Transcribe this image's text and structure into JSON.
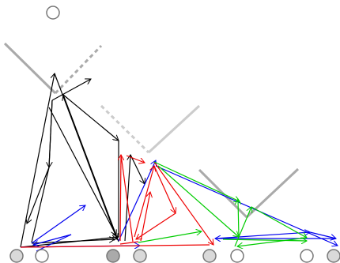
{
  "colors": {
    "background": "#ffffff",
    "node_stroke": "#777777",
    "node_fill_empty": "#ffffff",
    "node_fill_light": "#d9d9d9",
    "node_fill_dark": "#aaaaaa",
    "black": "#000000",
    "blue": "#0000ee",
    "red": "#ee0000",
    "green": "#00cc00"
  },
  "nodes": [
    {
      "id": "top",
      "fill": "empty"
    },
    {
      "id": "b1",
      "fill": "light"
    },
    {
      "id": "b2",
      "fill": "empty"
    },
    {
      "id": "b3",
      "fill": "dark"
    },
    {
      "id": "b4",
      "fill": "light"
    },
    {
      "id": "b5",
      "fill": "light"
    },
    {
      "id": "b6",
      "fill": "empty"
    },
    {
      "id": "b7",
      "fill": "empty"
    },
    {
      "id": "b8",
      "fill": "light"
    }
  ]
}
